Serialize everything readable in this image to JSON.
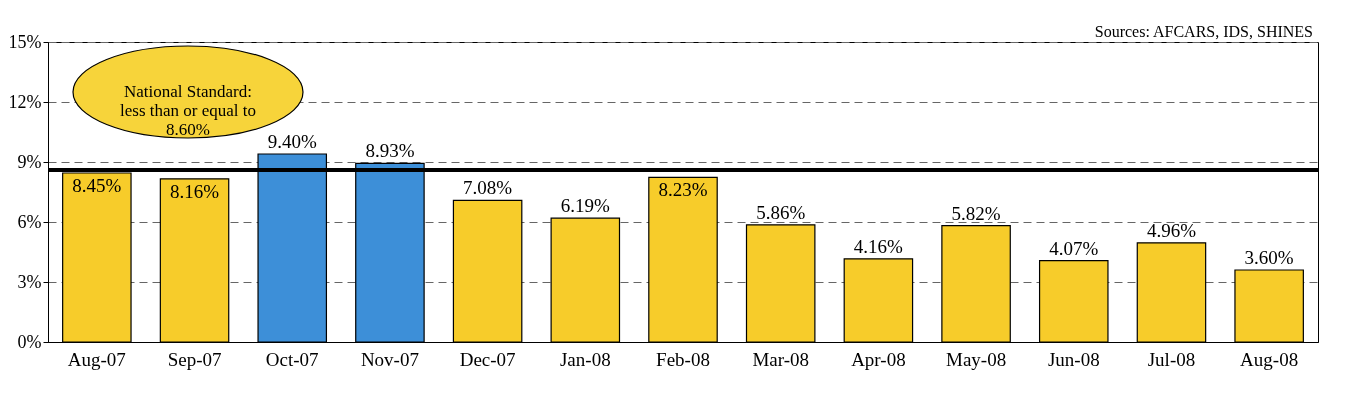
{
  "chart_data": {
    "type": "bar",
    "categories": [
      "Aug-07",
      "Sep-07",
      "Oct-07",
      "Nov-07",
      "Dec-07",
      "Jan-08",
      "Feb-08",
      "Mar-08",
      "Apr-08",
      "May-08",
      "Jun-08",
      "Jul-08",
      "Aug-08"
    ],
    "values": [
      8.45,
      8.16,
      9.4,
      8.93,
      7.08,
      6.19,
      8.23,
      5.86,
      4.16,
      5.82,
      4.07,
      4.96,
      3.6
    ],
    "value_labels": [
      "8.45%",
      "8.16%",
      "9.40%",
      "8.93%",
      "7.08%",
      "6.19%",
      "8.23%",
      "5.86%",
      "4.16%",
      "5.82%",
      "4.07%",
      "4.96%",
      "3.60%"
    ],
    "colors": [
      "#f7cc2a",
      "#f7cc2a",
      "#3d8fd8",
      "#3d8fd8",
      "#f7cc2a",
      "#f7cc2a",
      "#f7cc2a",
      "#f7cc2a",
      "#f7cc2a",
      "#f7cc2a",
      "#f7cc2a",
      "#f7cc2a",
      "#f7cc2a"
    ],
    "ylim": [
      0,
      15
    ],
    "yticks": [
      {
        "value": 0,
        "label": "0%"
      },
      {
        "value": 3,
        "label": "3%"
      },
      {
        "value": 6,
        "label": "6%"
      },
      {
        "value": 9,
        "label": "9%"
      },
      {
        "value": 12,
        "label": "12%"
      },
      {
        "value": 15,
        "label": "15%"
      }
    ],
    "grid": "y",
    "ref_lines": [
      {
        "axis": "y",
        "value": 8.6,
        "label": "National Standard:\nless than or equal to\n8.60%",
        "color": "#000000"
      }
    ],
    "annotations": [
      "Sources: AFCARS, IDS, SHINES"
    ]
  }
}
